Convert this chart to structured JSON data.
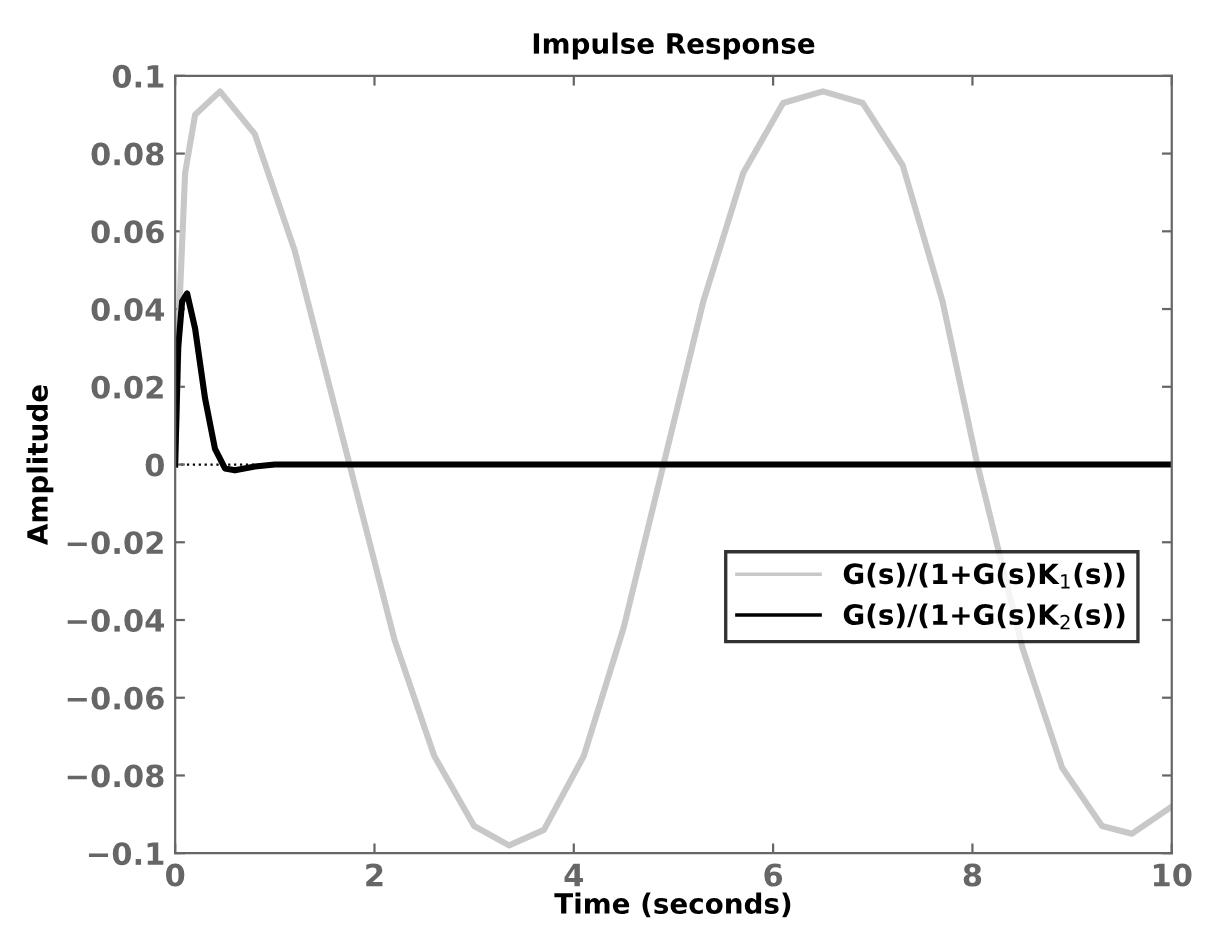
{
  "chart_data": {
    "type": "line",
    "title": "Impulse Response",
    "xlabel": "Time (seconds)",
    "ylabel": "Amplitude",
    "xlim": [
      0,
      10
    ],
    "xticks": [
      0,
      2,
      4,
      6,
      8,
      10
    ],
    "ylim": [
      -0.1,
      0.1
    ],
    "yticks": [
      -0.1,
      -0.08,
      -0.06,
      -0.04,
      -0.02,
      0,
      0.02,
      0.04,
      0.06,
      0.08,
      0.1
    ],
    "grid": false,
    "legend": "right",
    "line_style": "solid",
    "marker": "none",
    "ref_lines": [
      {
        "axis": "y",
        "value": 0,
        "color": "#000000",
        "line_style": "dotted"
      }
    ],
    "series": [
      {
        "name": "G(s)/(1+G(s)K$_{1}$(s))",
        "color": "#c8c8c8",
        "x": [
          0,
          0.05,
          0.1,
          0.2,
          0.45,
          0.8,
          1.2,
          1.75,
          2.2,
          2.6,
          3.0,
          3.35,
          3.7,
          4.1,
          4.5,
          4.9,
          5.3,
          5.7,
          6.1,
          6.5,
          6.9,
          7.3,
          7.7,
          8.05,
          8.5,
          8.9,
          9.3,
          9.6,
          10
        ],
        "values": [
          0,
          0.045,
          0.075,
          0.09,
          0.096,
          0.085,
          0.055,
          0,
          -0.045,
          -0.075,
          -0.093,
          -0.098,
          -0.094,
          -0.075,
          -0.042,
          0,
          0.042,
          0.075,
          0.093,
          0.096,
          0.093,
          0.077,
          0.042,
          0,
          -0.047,
          -0.078,
          -0.093,
          -0.095,
          -0.088
        ]
      },
      {
        "name": "G(s)/(1+G(s)K$_{2}$(s))",
        "color": "#000000",
        "x": [
          0,
          0.03,
          0.07,
          0.12,
          0.2,
          0.3,
          0.4,
          0.5,
          0.6,
          0.8,
          1.0,
          10
        ],
        "values": [
          0,
          0.03,
          0.042,
          0.044,
          0.035,
          0.017,
          0.004,
          -0.001,
          -0.0015,
          -0.0005,
          0,
          0
        ]
      }
    ]
  }
}
